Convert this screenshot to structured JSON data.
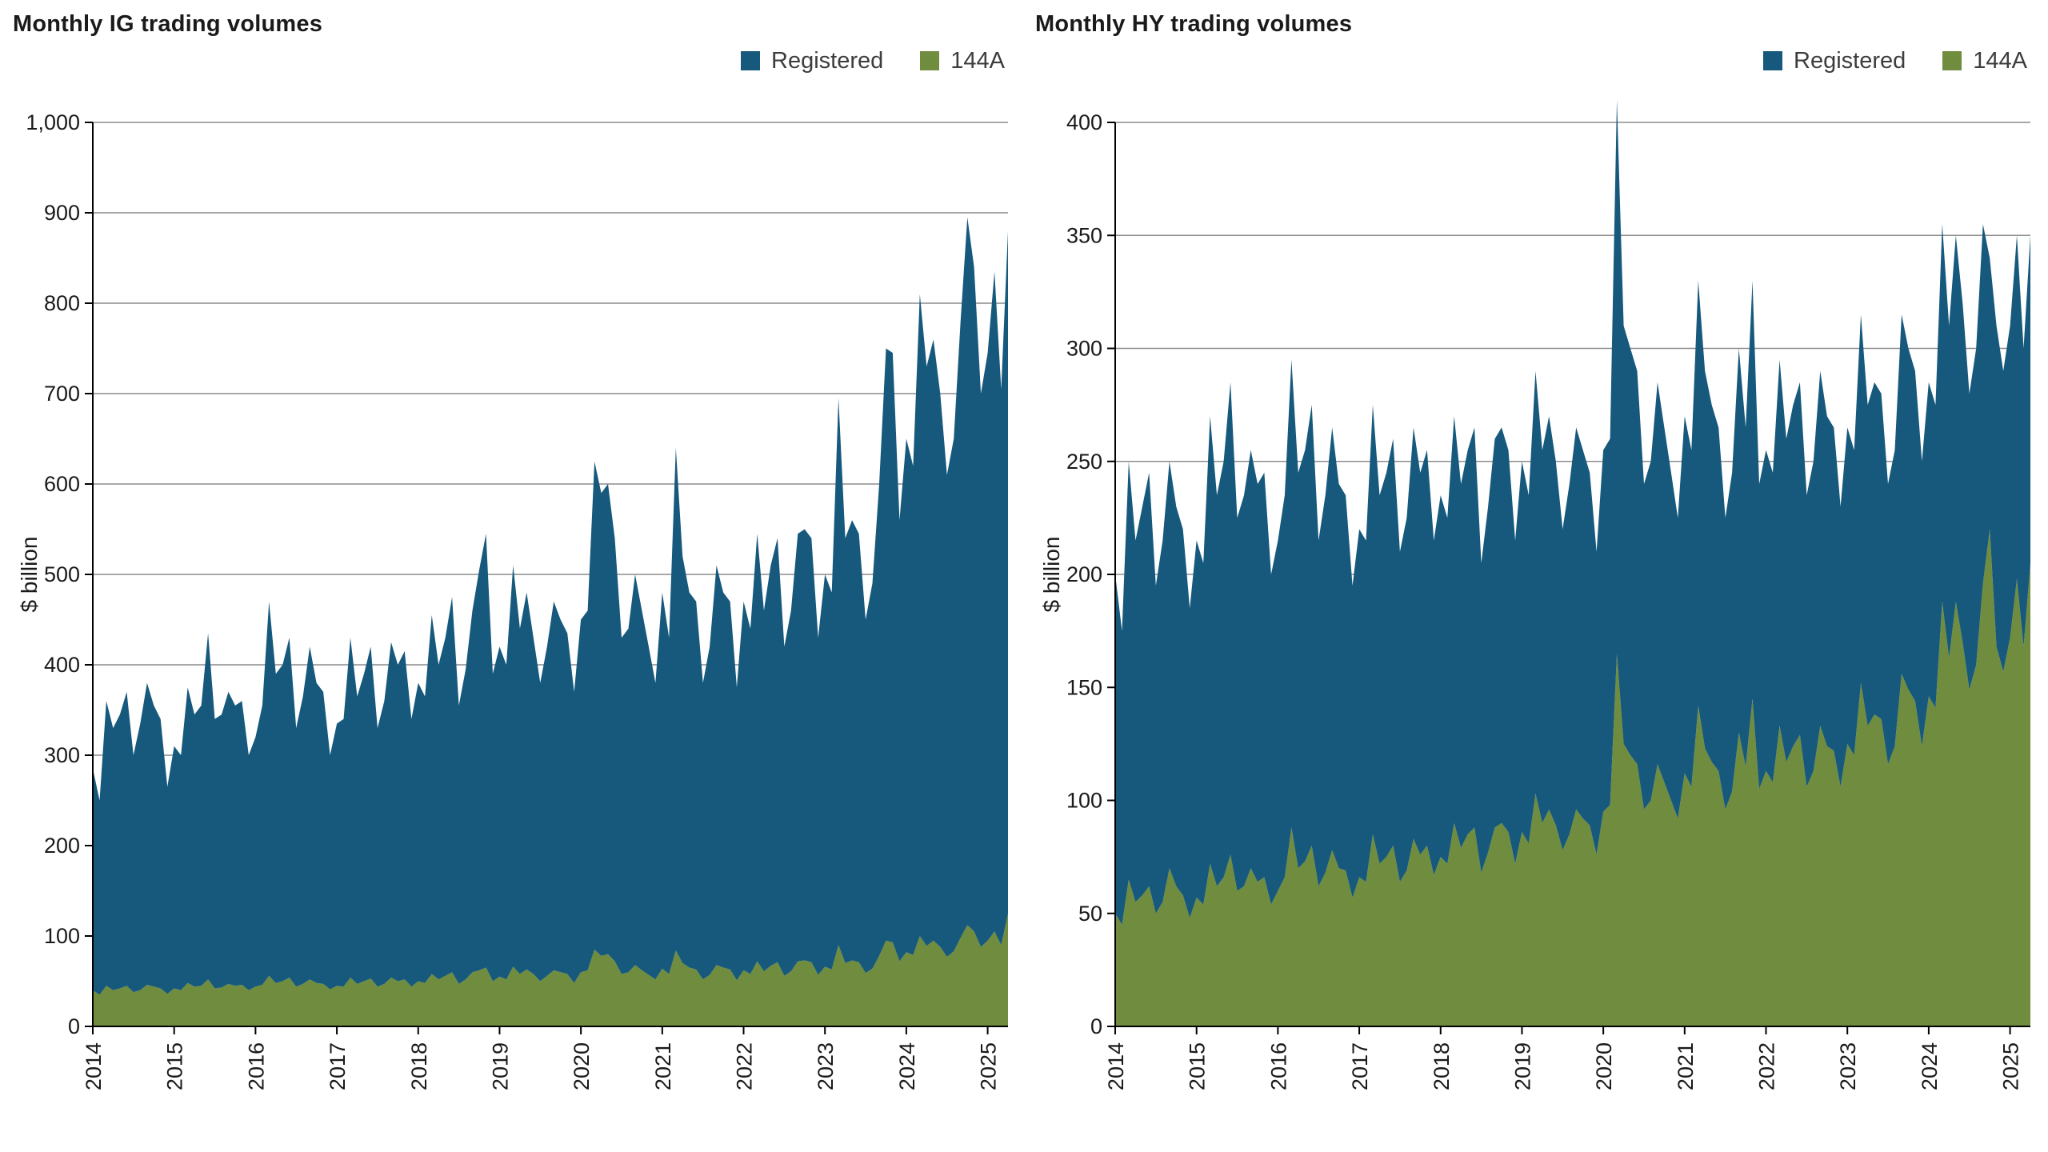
{
  "chart_data": [
    {
      "type": "area",
      "stacked": true,
      "title": "Monthly IG trading volumes",
      "ylabel": "$ billion",
      "ymax": 1000,
      "ytick_labels": [
        "0",
        "100",
        "200",
        "300",
        "400",
        "500",
        "600",
        "700",
        "800",
        "900",
        "1,000"
      ],
      "x_labels": [
        "2014",
        "2015",
        "2016",
        "2017",
        "2018",
        "2019",
        "2020",
        "2021",
        "2022",
        "2023",
        "2024",
        "2025"
      ],
      "months_per_label": 12,
      "legend": [
        {
          "label": "Registered",
          "color": "#16597d"
        },
        {
          "label": "144A",
          "color": "#708c3e"
        }
      ],
      "series": [
        {
          "name": "144A",
          "color": "#708c3e",
          "values": [
            40,
            35,
            45,
            40,
            42,
            45,
            38,
            40,
            46,
            44,
            42,
            36,
            42,
            40,
            48,
            44,
            45,
            52,
            42,
            43,
            47,
            45,
            46,
            40,
            44,
            46,
            56,
            48,
            50,
            54,
            44,
            47,
            52,
            48,
            47,
            41,
            45,
            44,
            54,
            47,
            50,
            53,
            44,
            47,
            54,
            50,
            52,
            44,
            50,
            48,
            58,
            52,
            56,
            60,
            47,
            52,
            60,
            62,
            65,
            50,
            55,
            52,
            66,
            58,
            63,
            58,
            50,
            56,
            62,
            60,
            58,
            48,
            60,
            62,
            85,
            78,
            80,
            72,
            58,
            60,
            68,
            62,
            57,
            52,
            64,
            58,
            84,
            70,
            65,
            63,
            52,
            57,
            68,
            65,
            63,
            51,
            62,
            58,
            72,
            61,
            67,
            71,
            56,
            61,
            72,
            73,
            71,
            57,
            66,
            63,
            90,
            70,
            73,
            71,
            59,
            64,
            78,
            95,
            93,
            72,
            82,
            79,
            100,
            89,
            95,
            88,
            77,
            83,
            98,
            112,
            105,
            88,
            95,
            105,
            90,
            125
          ]
        },
        {
          "name": "Registered",
          "color": "#16597d",
          "values": [
            245,
            215,
            315,
            290,
            303,
            325,
            262,
            295,
            334,
            311,
            298,
            229,
            268,
            260,
            327,
            301,
            310,
            383,
            298,
            302,
            323,
            310,
            314,
            260,
            276,
            309,
            414,
            342,
            350,
            376,
            286,
            318,
            368,
            332,
            323,
            259,
            290,
            296,
            376,
            318,
            340,
            367,
            286,
            313,
            371,
            350,
            363,
            296,
            330,
            317,
            397,
            348,
            374,
            415,
            308,
            343,
            400,
            443,
            480,
            340,
            365,
            348,
            444,
            382,
            417,
            372,
            330,
            364,
            408,
            390,
            377,
            322,
            390,
            398,
            540,
            512,
            520,
            468,
            372,
            380,
            432,
            398,
            363,
            328,
            416,
            372,
            556,
            450,
            415,
            407,
            328,
            363,
            442,
            415,
            407,
            324,
            408,
            382,
            473,
            399,
            443,
            469,
            364,
            399,
            473,
            477,
            469,
            373,
            434,
            417,
            605,
            470,
            487,
            474,
            391,
            426,
            522,
            655,
            652,
            488,
            568,
            541,
            710,
            641,
            665,
            612,
            533,
            567,
            682,
            783,
            735,
            612,
            650,
            730,
            615,
            755
          ]
        }
      ]
    },
    {
      "type": "area",
      "stacked": true,
      "title": "Monthly HY trading volumes",
      "ylabel": "$ billion",
      "ymax": 400,
      "ytick_labels": [
        "0",
        "50",
        "100",
        "150",
        "200",
        "250",
        "300",
        "350",
        "400"
      ],
      "x_labels": [
        "2014",
        "2015",
        "2016",
        "2017",
        "2018",
        "2019",
        "2020",
        "2021",
        "2022",
        "2023",
        "2024",
        "2025"
      ],
      "months_per_label": 12,
      "legend": [
        {
          "label": "Registered",
          "color": "#16597d"
        },
        {
          "label": "144A",
          "color": "#708c3e"
        }
      ],
      "series": [
        {
          "name": "144A",
          "color": "#708c3e",
          "values": [
            50,
            45,
            65,
            55,
            58,
            62,
            50,
            55,
            70,
            62,
            58,
            48,
            57,
            54,
            72,
            62,
            66,
            76,
            60,
            62,
            70,
            64,
            66,
            54,
            60,
            66,
            88,
            70,
            73,
            80,
            62,
            68,
            78,
            70,
            69,
            57,
            66,
            64,
            85,
            72,
            75,
            80,
            64,
            69,
            83,
            76,
            80,
            67,
            75,
            72,
            90,
            79,
            85,
            88,
            68,
            77,
            88,
            90,
            86,
            72,
            86,
            81,
            103,
            90,
            96,
            89,
            78,
            85,
            96,
            92,
            89,
            76,
            95,
            98,
            165,
            125,
            120,
            116,
            96,
            100,
            116,
            108,
            100,
            92,
            112,
            106,
            142,
            123,
            117,
            113,
            96,
            104,
            130,
            115,
            145,
            105,
            113,
            108,
            133,
            117,
            124,
            129,
            106,
            113,
            133,
            124,
            122,
            106,
            125,
            120,
            152,
            133,
            138,
            136,
            116,
            124,
            156,
            149,
            144,
            124,
            146,
            141,
            188,
            163,
            188,
            170,
            149,
            160,
            196,
            220,
            168,
            157,
            172,
            198,
            168,
            205
          ]
        },
        {
          "name": "Registered",
          "color": "#16597d",
          "values": [
            150,
            130,
            185,
            160,
            172,
            183,
            145,
            160,
            180,
            168,
            162,
            137,
            158,
            151,
            198,
            173,
            184,
            209,
            165,
            173,
            185,
            176,
            179,
            146,
            155,
            169,
            207,
            175,
            182,
            195,
            153,
            167,
            187,
            170,
            166,
            138,
            154,
            151,
            190,
            163,
            170,
            180,
            146,
            156,
            182,
            169,
            175,
            148,
            160,
            153,
            180,
            161,
            170,
            177,
            137,
            153,
            172,
            175,
            169,
            143,
            164,
            154,
            187,
            165,
            174,
            161,
            142,
            155,
            169,
            163,
            156,
            134,
            160,
            162,
            245,
            185,
            180,
            174,
            144,
            150,
            169,
            157,
            145,
            133,
            158,
            149,
            188,
            167,
            158,
            152,
            129,
            141,
            170,
            150,
            185,
            135,
            142,
            137,
            162,
            143,
            151,
            156,
            129,
            137,
            157,
            146,
            143,
            124,
            140,
            135,
            163,
            142,
            147,
            144,
            124,
            131,
            159,
            151,
            146,
            126,
            139,
            134,
            167,
            147,
            162,
            150,
            131,
            140,
            159,
            120,
            142,
            133,
            138,
            152,
            132,
            145
          ]
        }
      ]
    }
  ],
  "style": {
    "grid_color": "#8c8c8c",
    "axis_color": "#000000",
    "tick_text_color": "#1a1a1a"
  }
}
